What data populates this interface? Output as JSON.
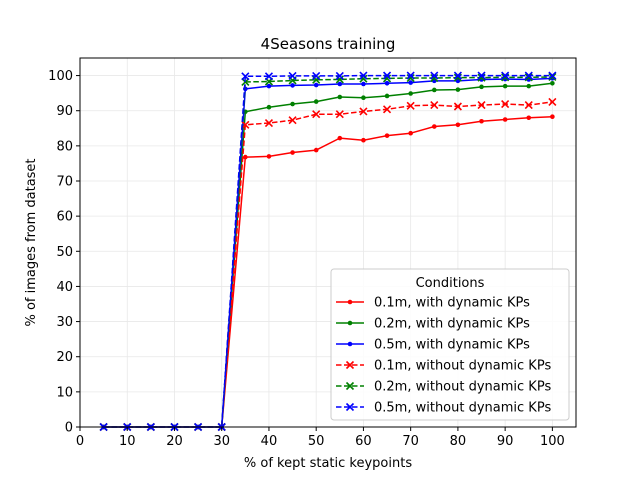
{
  "chart_data": {
    "type": "line",
    "title": "4Seasons training",
    "xlabel": "% of kept static keypoints",
    "ylabel": "% of images from dataset",
    "xlim": [
      0,
      105
    ],
    "ylim": [
      0,
      105
    ],
    "xticks": [
      0,
      10,
      20,
      30,
      40,
      50,
      60,
      70,
      80,
      90,
      100
    ],
    "yticks": [
      0,
      10,
      20,
      30,
      40,
      50,
      60,
      70,
      80,
      90,
      100
    ],
    "grid": true,
    "legend": {
      "title": "Conditions",
      "placement": "lower-right"
    },
    "x": [
      5,
      10,
      15,
      20,
      25,
      30,
      35,
      40,
      45,
      50,
      55,
      60,
      65,
      70,
      75,
      80,
      85,
      90,
      95,
      100
    ],
    "series": [
      {
        "name": "0.1m, with dynamic KPs",
        "color": "#ff0000",
        "linestyle": "solid",
        "marker": "dot",
        "values": [
          0,
          0,
          0,
          0,
          0,
          0,
          76.8,
          77.0,
          78.1,
          78.8,
          82.2,
          81.6,
          82.9,
          83.6,
          85.5,
          86.0,
          87.0,
          87.5,
          88.0,
          88.3
        ]
      },
      {
        "name": "0.2m, with dynamic KPs",
        "color": "#008000",
        "linestyle": "solid",
        "marker": "dot",
        "values": [
          0,
          0,
          0,
          0,
          0,
          0,
          89.7,
          91.0,
          91.9,
          92.6,
          93.9,
          93.7,
          94.2,
          94.9,
          95.9,
          96.0,
          96.8,
          97.0,
          97.0,
          97.8
        ]
      },
      {
        "name": "0.5m, with dynamic KPs",
        "color": "#0000ff",
        "linestyle": "solid",
        "marker": "dot",
        "values": [
          0,
          0,
          0,
          0,
          0,
          0,
          96.2,
          97.0,
          97.2,
          97.3,
          97.6,
          97.6,
          97.8,
          98.0,
          98.5,
          98.5,
          98.9,
          99.0,
          98.9,
          99.2
        ]
      },
      {
        "name": "0.1m, without dynamic KPs",
        "color": "#ff0000",
        "linestyle": "dashed",
        "marker": "x",
        "values": [
          0,
          0,
          0,
          0,
          0,
          0,
          86.0,
          86.5,
          87.3,
          89.0,
          89.0,
          89.8,
          90.4,
          91.4,
          91.6,
          91.2,
          91.6,
          91.9,
          91.6,
          92.5
        ]
      },
      {
        "name": "0.2m, without dynamic KPs",
        "color": "#008000",
        "linestyle": "dashed",
        "marker": "x",
        "values": [
          0,
          0,
          0,
          0,
          0,
          0,
          98.2,
          98.3,
          98.6,
          98.8,
          98.9,
          99.1,
          99.2,
          99.3,
          99.3,
          99.4,
          99.4,
          99.5,
          99.5,
          99.6
        ]
      },
      {
        "name": "0.5m, without dynamic KPs",
        "color": "#0000ff",
        "linestyle": "dashed",
        "marker": "x",
        "values": [
          0,
          0,
          0,
          0,
          0,
          0,
          99.8,
          99.8,
          99.9,
          99.9,
          99.9,
          100.0,
          100.0,
          100.0,
          100.0,
          100.0,
          100.0,
          100.0,
          100.0,
          100.0
        ]
      }
    ]
  }
}
